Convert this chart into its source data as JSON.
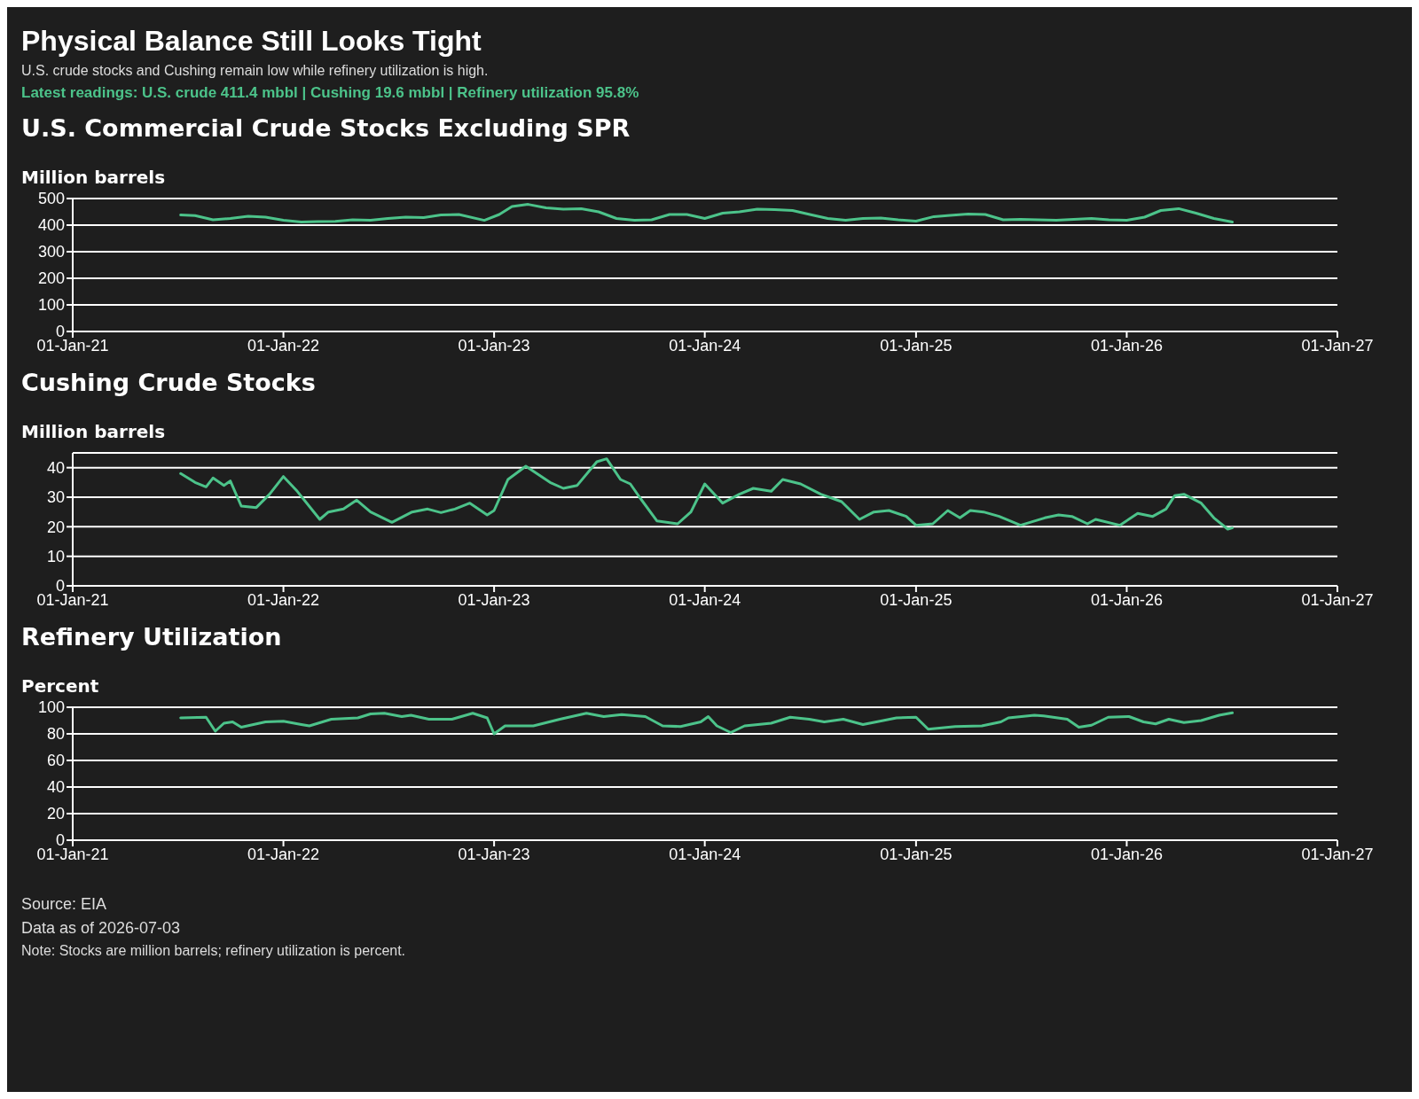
{
  "chart_data": [
    {
      "type": "other",
      "title": "Physical Balance Still Looks Tight",
      "subtitle": "U.S. crude stocks and Cushing remain low while refinery utilization is high.",
      "annotations": [
        "Latest readings: U.S. crude 411.4 mbbl | Cushing 19.6 mbbl | Refinery utilization 95.8%"
      ]
    },
    {
      "type": "line",
      "title": "U.S. Commercial Crude Stocks Excluding SPR",
      "ylabel": "Million barrels",
      "grid": "y",
      "marker": "none",
      "line_style": "solid",
      "xlim": [
        "2021-01-01",
        "2027-01-01"
      ],
      "xticks": [
        {
          "value": "2021-01-01",
          "label": "01-Jan-21"
        },
        {
          "value": "2022-01-01",
          "label": "01-Jan-22"
        },
        {
          "value": "2023-01-01",
          "label": "01-Jan-23"
        },
        {
          "value": "2024-01-01",
          "label": "01-Jan-24"
        },
        {
          "value": "2025-01-01",
          "label": "01-Jan-25"
        },
        {
          "value": "2026-01-01",
          "label": "01-Jan-26"
        },
        {
          "value": "2027-01-01",
          "label": "01-Jan-27"
        }
      ],
      "ylim": [
        0,
        500
      ],
      "yticks": [
        0,
        100,
        200,
        300,
        400,
        500
      ],
      "series": [
        {
          "color": "#4cc38a",
          "x": [
            "2021-07-07",
            "2021-08-01",
            "2021-09-01",
            "2021-10-01",
            "2021-11-01",
            "2021-12-01",
            "2022-01-01",
            "2022-02-01",
            "2022-03-01",
            "2022-04-01",
            "2022-05-01",
            "2022-06-01",
            "2022-07-01",
            "2022-08-01",
            "2022-09-01",
            "2022-10-01",
            "2022-11-01",
            "2022-12-15",
            "2023-01-10",
            "2023-02-01",
            "2023-03-01",
            "2023-04-01",
            "2023-05-01",
            "2023-06-01",
            "2023-07-01",
            "2023-08-01",
            "2023-09-01",
            "2023-10-01",
            "2023-11-01",
            "2023-12-01",
            "2024-01-01",
            "2024-02-01",
            "2024-03-01",
            "2024-04-01",
            "2024-05-01",
            "2024-06-01",
            "2024-07-01",
            "2024-08-01",
            "2024-09-01",
            "2024-10-01",
            "2024-11-01",
            "2024-12-01",
            "2025-01-01",
            "2025-02-01",
            "2025-03-01",
            "2025-04-01",
            "2025-05-01",
            "2025-06-01",
            "2025-07-01",
            "2025-08-01",
            "2025-09-01",
            "2025-10-01",
            "2025-11-01",
            "2025-12-01",
            "2026-01-01",
            "2026-02-01",
            "2026-03-01",
            "2026-04-01",
            "2026-05-01",
            "2026-06-01",
            "2026-07-03"
          ],
          "values": [
            438,
            436,
            420,
            425,
            433,
            430,
            418,
            412,
            413,
            414,
            420,
            418,
            425,
            430,
            428,
            438,
            440,
            418,
            440,
            470,
            478,
            465,
            460,
            462,
            450,
            425,
            418,
            420,
            440,
            440,
            425,
            445,
            450,
            460,
            458,
            455,
            440,
            425,
            418,
            425,
            427,
            420,
            415,
            432,
            437,
            442,
            440,
            420,
            422,
            420,
            418,
            422,
            425,
            420,
            418,
            430,
            455,
            462,
            445,
            425,
            411.4
          ]
        }
      ]
    },
    {
      "type": "line",
      "title": "Cushing Crude Stocks",
      "ylabel": "Million barrels",
      "grid": "y",
      "marker": "none",
      "line_style": "solid",
      "xlim": [
        "2021-01-01",
        "2027-01-01"
      ],
      "xticks": [
        {
          "value": "2021-01-01",
          "label": "01-Jan-21"
        },
        {
          "value": "2022-01-01",
          "label": "01-Jan-22"
        },
        {
          "value": "2023-01-01",
          "label": "01-Jan-23"
        },
        {
          "value": "2024-01-01",
          "label": "01-Jan-24"
        },
        {
          "value": "2025-01-01",
          "label": "01-Jan-25"
        },
        {
          "value": "2026-01-01",
          "label": "01-Jan-26"
        },
        {
          "value": "2027-01-01",
          "label": "01-Jan-27"
        }
      ],
      "ylim": [
        0,
        45
      ],
      "yticks": [
        0,
        10,
        20,
        30,
        40
      ],
      "series": [
        {
          "color": "#4cc38a",
          "x": [
            "2021-07-07",
            "2021-08-01",
            "2021-08-20",
            "2021-09-01",
            "2021-09-20",
            "2021-10-01",
            "2021-10-20",
            "2021-11-15",
            "2021-12-08",
            "2022-01-01",
            "2022-01-25",
            "2022-03-05",
            "2022-03-20",
            "2022-04-15",
            "2022-05-08",
            "2022-06-01",
            "2022-07-08",
            "2022-08-12",
            "2022-09-08",
            "2022-10-01",
            "2022-10-25",
            "2022-11-20",
            "2022-12-20",
            "2023-01-01",
            "2023-01-25",
            "2023-02-25",
            "2023-04-08",
            "2023-05-01",
            "2023-05-25",
            "2023-06-28",
            "2023-07-15",
            "2023-08-08",
            "2023-08-25",
            "2023-09-10",
            "2023-10-10",
            "2023-11-15",
            "2023-12-08",
            "2024-01-01",
            "2024-02-01",
            "2024-03-01",
            "2024-03-25",
            "2024-04-25",
            "2024-05-15",
            "2024-06-15",
            "2024-07-20",
            "2024-08-25",
            "2024-09-25",
            "2024-10-20",
            "2024-11-15",
            "2024-12-15",
            "2025-01-01",
            "2025-01-30",
            "2025-02-25",
            "2025-03-18",
            "2025-04-05",
            "2025-04-28",
            "2025-05-25",
            "2025-07-01",
            "2025-08-12",
            "2025-09-05",
            "2025-09-28",
            "2025-10-25",
            "2025-11-08",
            "2025-12-20",
            "2026-01-20",
            "2026-02-15",
            "2026-03-10",
            "2026-03-25",
            "2026-04-10",
            "2026-04-25",
            "2026-05-10",
            "2026-06-01",
            "2026-06-25",
            "2026-07-03"
          ],
          "values": [
            38,
            35,
            33.5,
            36.5,
            34,
            35.5,
            27,
            26.5,
            31,
            37,
            32,
            22.5,
            25,
            26,
            29,
            25,
            21.5,
            25,
            26,
            24.8,
            26,
            28,
            24,
            25.5,
            36,
            40.5,
            35,
            33,
            34,
            42,
            43,
            36,
            34.5,
            30,
            22,
            21,
            25,
            34.5,
            28,
            31,
            33,
            32,
            36,
            34.5,
            31,
            28.5,
            22.5,
            25,
            25.5,
            23.5,
            20.5,
            21,
            25.5,
            23,
            25.5,
            25,
            23.5,
            20.5,
            23,
            24,
            23.5,
            21,
            22.5,
            20.5,
            24.5,
            23.5,
            26,
            30.5,
            31,
            29.5,
            28,
            23,
            19.2,
            19.6
          ]
        }
      ]
    },
    {
      "type": "line",
      "title": "Refinery Utilization",
      "ylabel": "Percent",
      "grid": "y",
      "marker": "none",
      "line_style": "solid",
      "xlim": [
        "2021-01-01",
        "2027-01-01"
      ],
      "xticks": [
        {
          "value": "2021-01-01",
          "label": "01-Jan-21"
        },
        {
          "value": "2022-01-01",
          "label": "01-Jan-22"
        },
        {
          "value": "2023-01-01",
          "label": "01-Jan-23"
        },
        {
          "value": "2024-01-01",
          "label": "01-Jan-24"
        },
        {
          "value": "2025-01-01",
          "label": "01-Jan-25"
        },
        {
          "value": "2026-01-01",
          "label": "01-Jan-26"
        },
        {
          "value": "2027-01-01",
          "label": "01-Jan-27"
        }
      ],
      "ylim": [
        0,
        100
      ],
      "yticks": [
        0,
        20,
        40,
        60,
        80,
        100
      ],
      "annotations": [
        "Source: EIA",
        "Data as of 2026-07-03",
        "Note: Stocks are million barrels; refinery utilization is percent."
      ],
      "series": [
        {
          "color": "#4cc38a",
          "x": [
            "2021-07-07",
            "2021-08-20",
            "2021-09-05",
            "2021-09-20",
            "2021-10-05",
            "2021-10-20",
            "2021-12-01",
            "2022-01-01",
            "2022-02-01",
            "2022-02-15",
            "2022-03-25",
            "2022-05-10",
            "2022-06-01",
            "2022-06-25",
            "2022-07-25",
            "2022-08-10",
            "2022-09-10",
            "2022-10-20",
            "2022-11-25",
            "2022-12-20",
            "2023-01-01",
            "2023-01-20",
            "2023-03-10",
            "2023-04-25",
            "2023-06-10",
            "2023-07-10",
            "2023-08-10",
            "2023-09-20",
            "2023-10-20",
            "2023-11-20",
            "2023-12-25",
            "2024-01-07",
            "2024-01-22",
            "2024-02-15",
            "2024-03-10",
            "2024-04-25",
            "2024-05-28",
            "2024-06-30",
            "2024-07-26",
            "2024-08-28",
            "2024-10-01",
            "2024-11-05",
            "2024-11-28",
            "2025-01-01",
            "2025-01-22",
            "2025-03-10",
            "2025-04-25",
            "2025-05-28",
            "2025-06-10",
            "2025-07-25",
            "2025-08-10",
            "2025-09-20",
            "2025-10-10",
            "2025-11-01",
            "2025-11-30",
            "2026-01-05",
            "2026-01-30",
            "2026-02-20",
            "2026-03-15",
            "2026-04-10",
            "2026-05-10",
            "2026-06-10",
            "2026-07-03"
          ],
          "values": [
            92,
            92.5,
            82,
            88,
            89,
            85,
            89,
            89.5,
            87,
            86,
            91,
            92,
            95,
            95.5,
            93,
            94,
            91,
            91,
            95.5,
            92,
            80,
            86,
            86,
            91,
            95.5,
            93,
            94.5,
            93,
            86,
            85.5,
            89,
            93,
            86,
            81,
            86,
            88,
            92.5,
            91,
            89,
            91,
            87,
            90,
            92,
            92.5,
            83.5,
            85.5,
            86,
            89,
            92,
            94,
            93.5,
            91,
            85,
            86.5,
            92.5,
            93,
            89,
            87.5,
            91,
            88.5,
            90,
            94,
            95.8
          ]
        }
      ]
    }
  ]
}
